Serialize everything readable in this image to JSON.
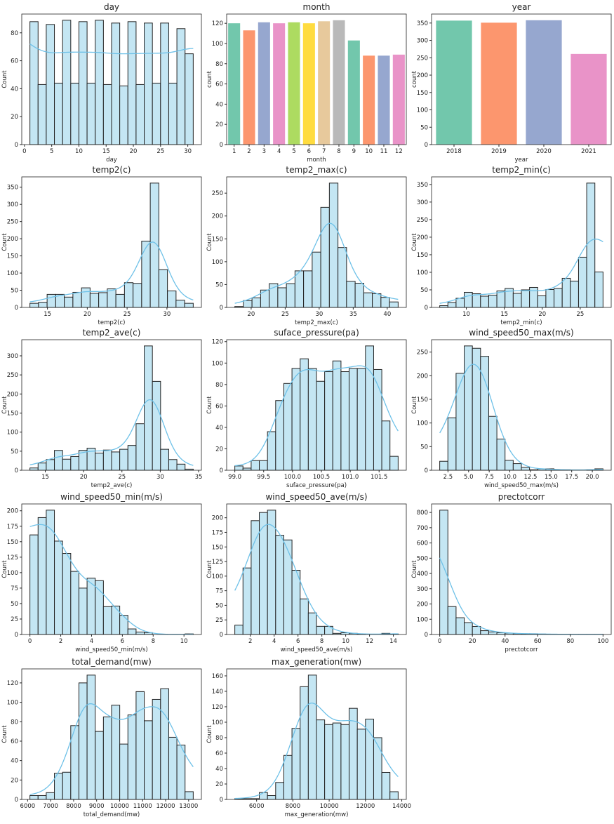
{
  "colors": {
    "bar_fill": "#c4e6f3",
    "bar_edge": "#222222",
    "kde": "#6ec1e8",
    "palette": [
      "#66c2a5",
      "#fc8d62",
      "#8da0cb",
      "#e78ac3",
      "#a6d854",
      "#ffd92f",
      "#e5c494",
      "#b3b3b3"
    ]
  },
  "chart_data": [
    {
      "type": "bar",
      "kind": "hist",
      "title": "day",
      "xlabel": "day",
      "ylabel": "Count",
      "range": [
        1,
        31
      ],
      "counts": [
        88,
        43,
        86,
        44,
        89,
        44,
        88,
        44,
        89,
        43,
        87,
        42,
        88,
        43,
        87,
        44,
        87,
        44,
        83,
        65
      ],
      "xticks": [
        0,
        5,
        10,
        15,
        20,
        25,
        30
      ],
      "yticks": [
        0,
        20,
        40,
        60,
        80
      ],
      "kde": true
    },
    {
      "type": "bar",
      "kind": "count",
      "title": "month",
      "xlabel": "month",
      "ylabel": "count",
      "categories": [
        "1",
        "2",
        "3",
        "4",
        "5",
        "6",
        "7",
        "8",
        "9",
        "10",
        "11",
        "12"
      ],
      "values": [
        120,
        113,
        121,
        120,
        121,
        120,
        122,
        123,
        103,
        88,
        88,
        89
      ],
      "yticks": [
        0,
        20,
        40,
        60,
        80,
        100,
        120
      ]
    },
    {
      "type": "bar",
      "kind": "count",
      "title": "year",
      "xlabel": "year",
      "ylabel": "count",
      "categories": [
        "2018",
        "2019",
        "2020",
        "2021"
      ],
      "values": [
        357,
        351,
        358,
        261
      ],
      "yticks": [
        0,
        50,
        100,
        150,
        200,
        250,
        300,
        350
      ]
    },
    {
      "type": "bar",
      "kind": "hist",
      "title": "temp2(c)",
      "xlabel": "temp2(c)",
      "ylabel": "Count",
      "range": [
        12.8,
        33.3
      ],
      "counts": [
        12,
        15,
        38,
        38,
        30,
        44,
        57,
        41,
        43,
        54,
        38,
        72,
        70,
        193,
        362,
        110,
        48,
        21,
        12
      ],
      "xticks": [
        15,
        20,
        25,
        30
      ],
      "yticks": [
        0,
        50,
        100,
        150,
        200,
        250,
        300,
        350
      ],
      "kde": true
    },
    {
      "type": "bar",
      "kind": "hist",
      "title": "temp2_max(c)",
      "xlabel": "temp2_max(c)",
      "ylabel": "Count",
      "range": [
        17.6,
        41.6
      ],
      "counts": [
        2,
        15,
        21,
        38,
        52,
        43,
        52,
        80,
        80,
        121,
        219,
        272,
        131,
        57,
        53,
        32,
        30,
        22,
        12
      ],
      "xticks": [
        20,
        25,
        30,
        35,
        40
      ],
      "yticks": [
        0,
        50,
        100,
        150,
        200,
        250
      ],
      "kde": true
    },
    {
      "type": "bar",
      "kind": "hist",
      "title": "temp2_min(c)",
      "xlabel": "temp2_min(c)",
      "ylabel": "Count",
      "range": [
        6.5,
        28
      ],
      "counts": [
        5,
        14,
        26,
        43,
        39,
        32,
        35,
        47,
        54,
        40,
        50,
        57,
        33,
        51,
        54,
        83,
        75,
        143,
        354,
        101
      ],
      "xticks": [
        10,
        15,
        20,
        25
      ],
      "yticks": [
        0,
        50,
        100,
        150,
        200,
        250,
        300,
        350
      ],
      "kde": true
    },
    {
      "type": "bar",
      "kind": "hist",
      "title": "temp2_ave(c)",
      "xlabel": "temp2_ave(c)",
      "ylabel": "Count",
      "range": [
        13,
        34.3
      ],
      "counts": [
        6,
        19,
        28,
        52,
        29,
        36,
        52,
        58,
        45,
        53,
        48,
        55,
        65,
        122,
        326,
        233,
        55,
        28,
        16,
        3
      ],
      "xticks": [
        15,
        20,
        25,
        30,
        35
      ],
      "yticks": [
        0,
        50,
        100,
        150,
        200,
        250,
        300
      ],
      "kde": true
    },
    {
      "type": "bar",
      "kind": "hist",
      "title": "suface_pressure(pa)",
      "xlabel": "suface_pressure(pa)",
      "ylabel": "Count",
      "range": [
        99.0,
        101.83
      ],
      "counts": [
        4,
        2,
        9,
        9,
        36,
        65,
        81,
        95,
        104,
        95,
        83,
        92,
        102,
        92,
        95,
        95,
        116,
        94,
        46,
        13
      ],
      "xticks": [
        "99.0",
        "99.5",
        "100.0",
        "100.5",
        "101.0",
        "101.5"
      ],
      "yticks": [
        0,
        20,
        40,
        60,
        80,
        100,
        120
      ],
      "kde": true
    },
    {
      "type": "bar",
      "kind": "hist",
      "title": "wind_speed50_max(m/s)",
      "xlabel": "wind_speed50_max(m/s)",
      "ylabel": "Count",
      "range": [
        1.5,
        21.3
      ],
      "counts": [
        19,
        111,
        205,
        263,
        258,
        241,
        114,
        66,
        21,
        14,
        6,
        1,
        3,
        3,
        1,
        1,
        0,
        0,
        1,
        3
      ],
      "xticks": [
        "2.5",
        "5.0",
        "7.5",
        "10.0",
        "12.5",
        "15.0",
        "17.5",
        "20.0"
      ],
      "yticks": [
        0,
        50,
        100,
        150,
        200,
        250
      ],
      "kde": true
    },
    {
      "type": "bar",
      "kind": "hist",
      "title": "wind_speed50_min(m/s)",
      "xlabel": "wind_speed50_min(m/s)",
      "ylabel": "Count",
      "range": [
        0,
        10.6
      ],
      "counts": [
        161,
        189,
        201,
        151,
        131,
        102,
        75,
        91,
        87,
        45,
        46,
        31,
        9,
        4,
        3,
        0,
        0,
        0,
        0,
        1
      ],
      "xticks": [
        0,
        2,
        4,
        6,
        8,
        10
      ],
      "yticks": [
        0,
        25,
        50,
        75,
        100,
        125,
        150,
        175,
        200
      ],
      "kde": true
    },
    {
      "type": "bar",
      "kind": "hist",
      "title": "wind_speed50_ave(m/s)",
      "xlabel": "wind_speed50_ave(m/s)",
      "ylabel": "Count",
      "range": [
        0.7,
        14.4
      ],
      "counts": [
        16,
        114,
        195,
        209,
        213,
        170,
        162,
        110,
        61,
        37,
        14,
        14,
        2,
        3,
        2,
        1,
        0,
        0,
        2,
        1
      ],
      "xticks": [
        2,
        4,
        6,
        8,
        10,
        12,
        14
      ],
      "yticks": [
        0,
        25,
        50,
        75,
        100,
        125,
        150,
        175,
        200
      ],
      "kde": true
    },
    {
      "type": "bar",
      "kind": "hist",
      "title": "prectotcorr",
      "xlabel": "prectotcorr",
      "ylabel": "Count",
      "range": [
        0,
        100
      ],
      "counts": [
        815,
        183,
        110,
        78,
        53,
        25,
        17,
        12,
        9,
        6,
        5,
        5,
        3,
        2,
        2,
        1,
        1,
        1,
        1,
        1
      ],
      "xticks": [
        0,
        20,
        40,
        60,
        80,
        100
      ],
      "yticks": [
        0,
        100,
        200,
        300,
        400,
        500,
        600,
        700,
        800
      ],
      "kde": true
    },
    {
      "type": "bar",
      "kind": "hist",
      "title": "total_demand(mw)",
      "xlabel": "total_demand(mw)",
      "ylabel": "Count",
      "range": [
        6100,
        13200
      ],
      "counts": [
        4,
        4,
        7,
        27,
        28,
        76,
        120,
        128,
        70,
        85,
        97,
        57,
        87,
        111,
        81,
        103,
        114,
        64,
        56,
        8
      ],
      "xticks": [
        6000,
        7000,
        8000,
        9000,
        10000,
        11000,
        12000,
        13000
      ],
      "yticks": [
        0,
        20,
        40,
        60,
        80,
        100,
        120
      ],
      "kde": true
    },
    {
      "type": "bar",
      "kind": "hist",
      "title": "max_generation(mw)",
      "xlabel": "max_generation(mw)",
      "ylabel": "Count",
      "range": [
        4800,
        13800
      ],
      "counts": [
        1,
        1,
        1,
        9,
        5,
        22,
        57,
        92,
        146,
        161,
        103,
        97,
        99,
        97,
        118,
        91,
        104,
        80,
        35,
        10
      ],
      "xticks": [
        6000,
        8000,
        10000,
        12000,
        14000
      ],
      "yticks": [
        0,
        20,
        40,
        60,
        80,
        100,
        120,
        140,
        160
      ],
      "kde": true
    }
  ]
}
